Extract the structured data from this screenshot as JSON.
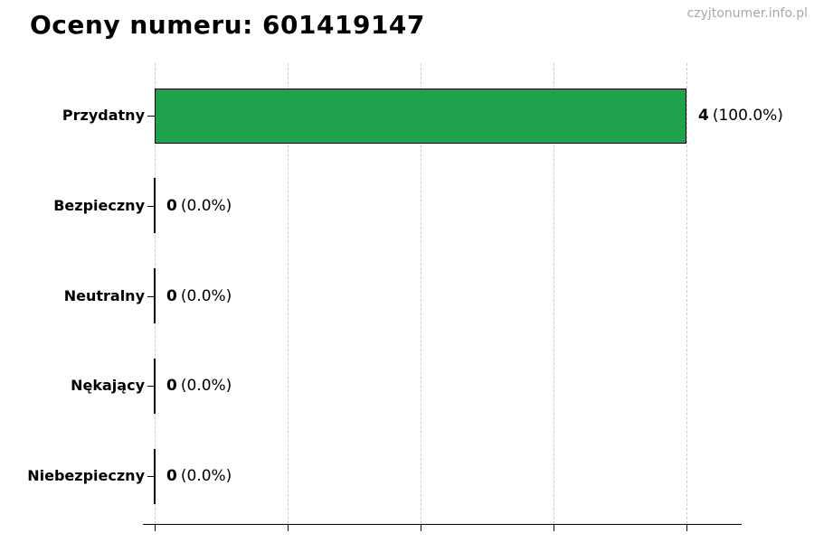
{
  "header": {
    "title": "Oceny numeru: 601419147",
    "watermark": "czyjtonumer.info.pl"
  },
  "chart_data": {
    "type": "bar",
    "orientation": "horizontal",
    "title": "Oceny numeru: 601419147",
    "categories": [
      "Przydatny",
      "Bezpieczny",
      "Neutralny",
      "Nękający",
      "Niebezpieczny"
    ],
    "values": [
      4,
      0,
      0,
      0,
      0
    ],
    "value_labels": [
      "4",
      "0",
      "0",
      "0",
      "0"
    ],
    "percent_labels": [
      "(100.0%)",
      "(0.0%)",
      "(0.0%)",
      "(0.0%)",
      "(0.0%)"
    ],
    "xlabel": "",
    "ylabel": "",
    "xlim": [
      0,
      4.4
    ],
    "xticks": [
      0,
      1,
      2,
      3,
      4
    ],
    "grid": "vertical-dashed",
    "legend": "none",
    "bar_color": "#1fa24c",
    "bar_edge_color": "#000000",
    "grid_color": "#cccccc"
  }
}
